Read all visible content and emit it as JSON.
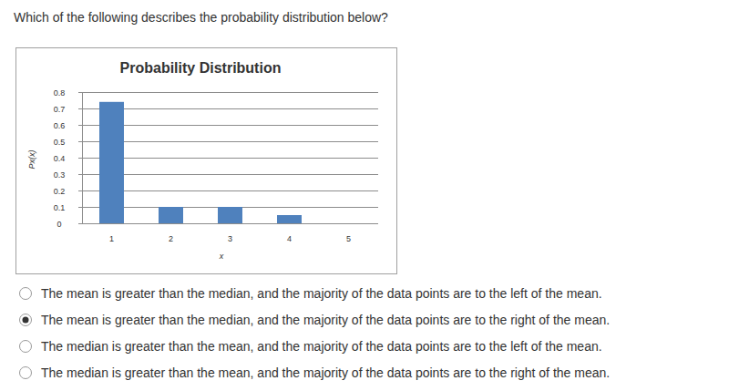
{
  "question": "Which of the following describes the probability distribution below?",
  "chart_data": {
    "type": "bar",
    "title": "Probability Distribution",
    "x_label": "x",
    "y_label": "Px(x)",
    "categories": [
      "1",
      "2",
      "3",
      "4",
      "5"
    ],
    "values": [
      0.74,
      0.1,
      0.1,
      0.05,
      0
    ],
    "color": "#4f81bd",
    "ylim": [
      0,
      0.8
    ],
    "yticks": [
      0,
      0.1,
      0.2,
      0.3,
      0.4,
      0.5,
      0.6,
      0.7,
      0.8
    ],
    "grid": true
  },
  "options": [
    {
      "text": "The mean is greater than the median, and the majority of the data points are to the left of the mean.",
      "selected": false
    },
    {
      "text": "The mean is greater than the median, and the majority of the data points are to the right of the mean.",
      "selected": true
    },
    {
      "text": "The median is greater than the mean, and the majority of the data points are to the left of the mean.",
      "selected": false
    },
    {
      "text": "The median is greater than the mean, and the majority of the data points are to the right of the mean.",
      "selected": false
    }
  ]
}
